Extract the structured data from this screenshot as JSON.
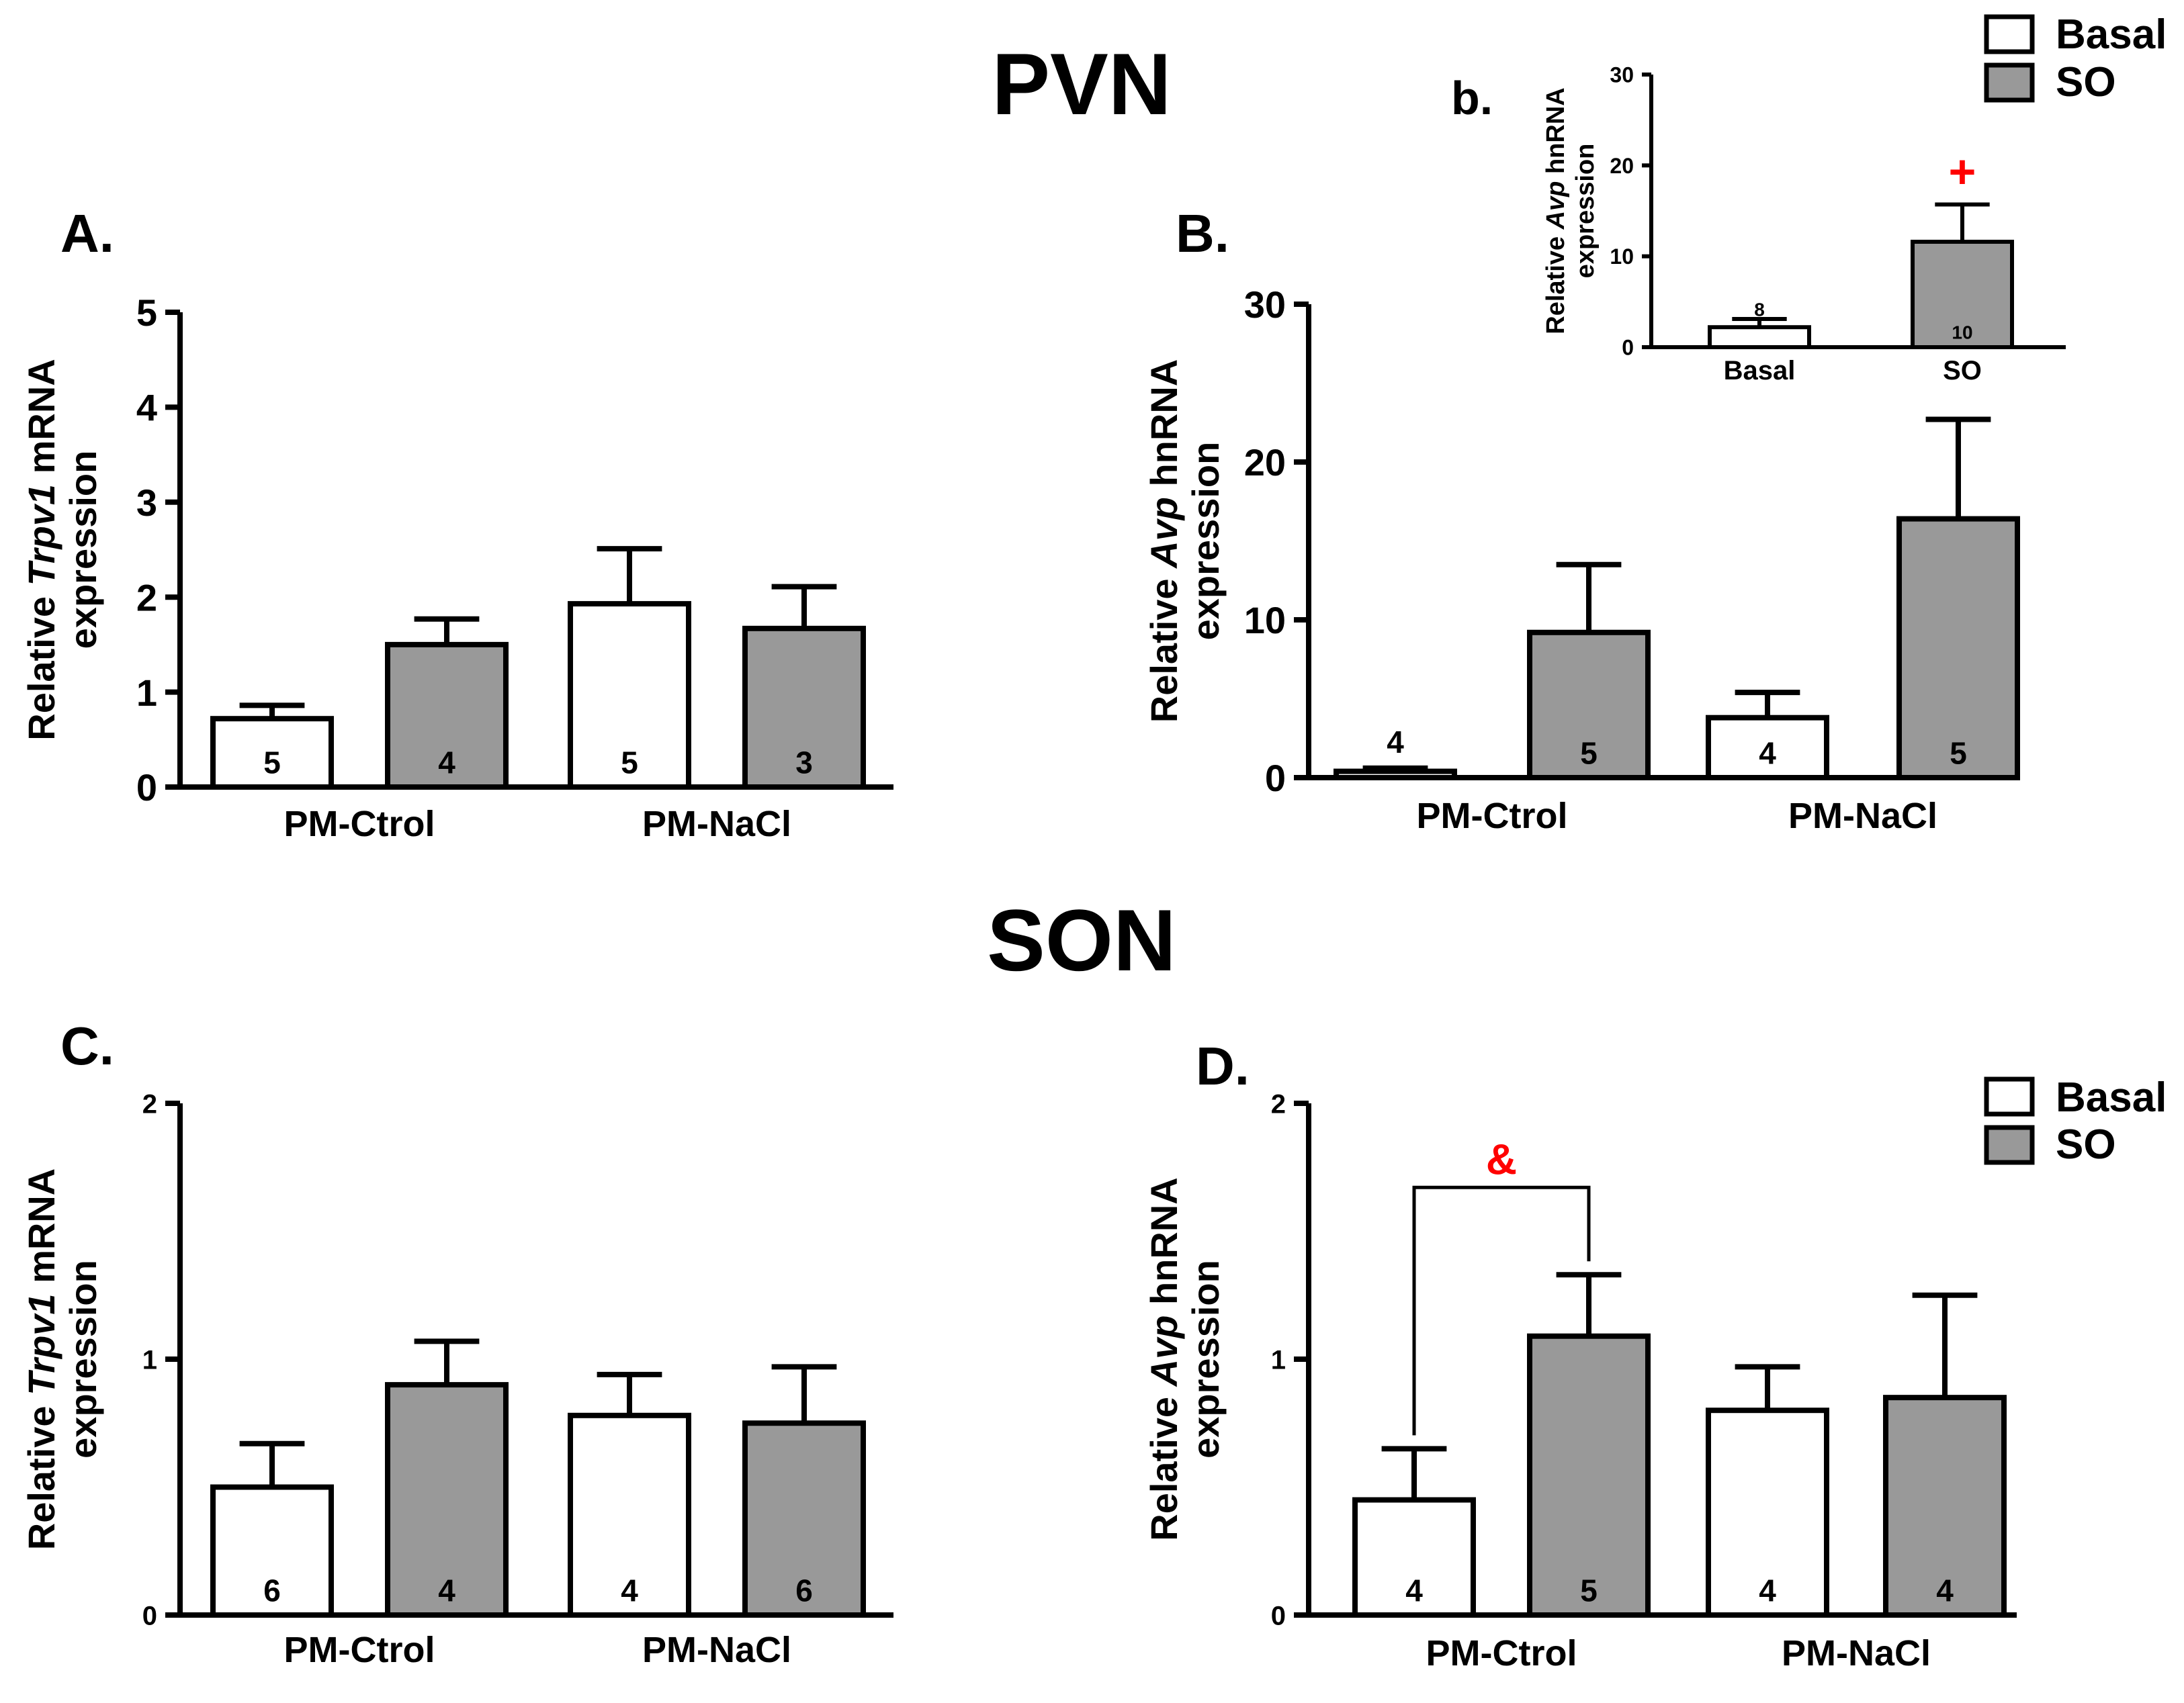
{
  "figure": {
    "section_titles": {
      "pvn": "PVN",
      "son": "SON"
    },
    "legend": [
      {
        "label": "Basal",
        "color": "#ffffff"
      },
      {
        "label": "SO",
        "color": "#999999"
      }
    ],
    "colors": {
      "basal": "#ffffff",
      "so": "#999999",
      "axis": "#000000",
      "significance": "#ff0000"
    }
  },
  "chart_data": [
    {
      "id": "A",
      "panel_label": "A.",
      "type": "bar",
      "ylabel_prefix": "Relative ",
      "ylabel_italic": "Trpv1",
      "ylabel_suffix": " mRNA",
      "ylabel_line2": "expression",
      "ylim": [
        0,
        5
      ],
      "yticks": [
        "0",
        "1",
        "2",
        "3",
        "4",
        "5"
      ],
      "categories": [
        "PM-Ctrol",
        "PM-NaCl"
      ],
      "series": [
        {
          "name": "Basal",
          "values": [
            0.72,
            1.93
          ],
          "errors": [
            0.14,
            0.58
          ],
          "n": [
            "5",
            "5"
          ]
        },
        {
          "name": "SO",
          "values": [
            1.5,
            1.67
          ],
          "errors": [
            0.27,
            0.44
          ],
          "n": [
            "4",
            "3"
          ]
        }
      ]
    },
    {
      "id": "B",
      "panel_label": "B.",
      "type": "bar",
      "ylabel_prefix": "Relative ",
      "ylabel_italic": "Avp",
      "ylabel_suffix": " hnRNA",
      "ylabel_line2": "expression",
      "ylim": [
        0,
        30
      ],
      "yticks": [
        "0",
        "10",
        "20",
        "30"
      ],
      "categories": [
        "PM-Ctrol",
        "PM-NaCl"
      ],
      "series": [
        {
          "name": "Basal",
          "values": [
            0.4,
            3.8
          ],
          "errors": [
            0.2,
            1.6
          ],
          "n": [
            "4",
            "4"
          ]
        },
        {
          "name": "SO",
          "values": [
            9.2,
            16.4
          ],
          "errors": [
            4.3,
            6.3
          ],
          "n": [
            "5",
            "5"
          ]
        }
      ]
    },
    {
      "id": "b",
      "panel_label": "b.",
      "type": "bar",
      "ylabel_prefix": "Relative ",
      "ylabel_italic": "Avp",
      "ylabel_suffix": " hnRNA",
      "ylabel_line2": "expression",
      "ylim": [
        0,
        30
      ],
      "yticks": [
        "0",
        "10",
        "20",
        "30"
      ],
      "categories": [
        "Basal",
        "SO"
      ],
      "values": [
        2.2,
        11.6
      ],
      "errors": [
        0.9,
        4.1
      ],
      "n": [
        "8",
        "10"
      ],
      "annotation": {
        "symbol": "+",
        "category": "SO"
      }
    },
    {
      "id": "C",
      "panel_label": "C.",
      "type": "bar",
      "ylabel_prefix": "Relative ",
      "ylabel_italic": "Trpv1",
      "ylabel_suffix": " mRNA",
      "ylabel_line2": "expression",
      "ylim": [
        0,
        2
      ],
      "yticks": [
        "0",
        "1",
        "2"
      ],
      "categories": [
        "PM-Ctrol",
        "PM-NaCl"
      ],
      "series": [
        {
          "name": "Basal",
          "values": [
            0.5,
            0.78
          ],
          "errors": [
            0.17,
            0.16
          ],
          "n": [
            "6",
            "4"
          ]
        },
        {
          "name": "SO",
          "values": [
            0.9,
            0.75
          ],
          "errors": [
            0.17,
            0.22
          ],
          "n": [
            "4",
            "6"
          ]
        }
      ]
    },
    {
      "id": "D",
      "panel_label": "D.",
      "type": "bar",
      "ylabel_prefix": "Relative ",
      "ylabel_italic": "Avp",
      "ylabel_suffix": " hnRNA",
      "ylabel_line2": "expression",
      "ylim": [
        0,
        2
      ],
      "yticks": [
        "0",
        "1",
        "2"
      ],
      "categories": [
        "PM-Ctrol",
        "PM-NaCl"
      ],
      "series": [
        {
          "name": "Basal",
          "values": [
            0.45,
            0.8
          ],
          "errors": [
            0.2,
            0.17
          ],
          "n": [
            "4",
            "4"
          ]
        },
        {
          "name": "SO",
          "values": [
            1.09,
            0.85
          ],
          "errors": [
            0.24,
            0.4
          ],
          "n": [
            "5",
            "4"
          ]
        }
      ],
      "annotation": {
        "symbol": "&",
        "between": [
          "Basal PM-Ctrol",
          "SO PM-Ctrol"
        ]
      }
    }
  ]
}
